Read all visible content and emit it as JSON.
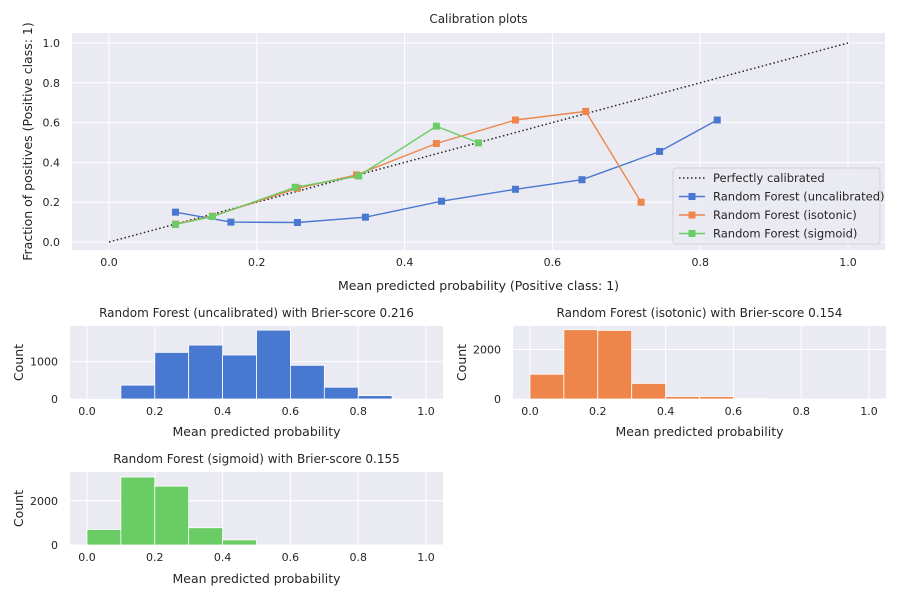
{
  "figure": {
    "background": "#ffffff",
    "axes_bg": "#eaeaf2",
    "grid_color": "#ffffff",
    "text_color": "#262626"
  },
  "chart_data": [
    {
      "type": "line",
      "title": "Calibration plots",
      "xlabel": "Mean predicted probability (Positive class: 1)",
      "ylabel": "Fraction of positives (Positive class: 1)",
      "xlim": [
        -0.05,
        1.05
      ],
      "ylim": [
        -0.04,
        1.05
      ],
      "xticks": [
        "0.0",
        "0.2",
        "0.4",
        "0.6",
        "0.8",
        "1.0"
      ],
      "yticks": [
        "0.0",
        "0.2",
        "0.4",
        "0.6",
        "0.8",
        "1.0"
      ],
      "grid": true,
      "legend_position": "lower-right",
      "series": [
        {
          "name": "Perfectly calibrated",
          "style": "dotted",
          "marker": "none",
          "color": "#262626",
          "x": [
            0,
            1
          ],
          "y": [
            0,
            1
          ]
        },
        {
          "name": "Random Forest (uncalibrated)",
          "style": "solid",
          "marker": "square",
          "color": "#4878d0",
          "x": [
            0.09,
            0.165,
            0.255,
            0.347,
            0.45,
            0.55,
            0.64,
            0.745,
            0.823
          ],
          "y": [
            0.15,
            0.1,
            0.098,
            0.125,
            0.205,
            0.265,
            0.313,
            0.455,
            0.613
          ]
        },
        {
          "name": "Random Forest (isotonic)",
          "style": "solid",
          "marker": "square",
          "color": "#ee854a",
          "x": [
            0.09,
            0.14,
            0.255,
            0.335,
            0.443,
            0.55,
            0.645,
            0.72
          ],
          "y": [
            0.09,
            0.13,
            0.27,
            0.337,
            0.495,
            0.613,
            0.656,
            0.2
          ]
        },
        {
          "name": "Random Forest (sigmoid)",
          "style": "solid",
          "marker": "square",
          "color": "#6acc64",
          "x": [
            0.09,
            0.14,
            0.252,
            0.338,
            0.443,
            0.5
          ],
          "y": [
            0.088,
            0.128,
            0.275,
            0.332,
            0.582,
            0.498
          ]
        }
      ]
    },
    {
      "type": "bar",
      "title": "Random Forest (uncalibrated) with Brier-score 0.216",
      "xlabel": "Mean predicted probability",
      "ylabel": "Count",
      "color": "#4878d0",
      "xlim": [
        -0.05,
        1.05
      ],
      "ylim": [
        0,
        1950
      ],
      "xticks": [
        "0.0",
        "0.2",
        "0.4",
        "0.6",
        "0.8",
        "1.0"
      ],
      "yticks": [
        "0",
        "1000"
      ],
      "ytick_values": [
        0,
        1000
      ],
      "bin_edges": [
        0.0,
        0.1,
        0.2,
        0.3,
        0.4,
        0.5,
        0.6,
        0.7,
        0.8,
        0.9,
        1.0
      ],
      "counts": [
        25,
        370,
        1245,
        1440,
        1175,
        1840,
        900,
        315,
        90,
        0
      ]
    },
    {
      "type": "bar",
      "title": "Random Forest (isotonic) with Brier-score 0.154",
      "xlabel": "Mean predicted probability",
      "ylabel": "Count",
      "color": "#ee854a",
      "xlim": [
        -0.05,
        1.05
      ],
      "ylim": [
        0,
        2950
      ],
      "xticks": [
        "0.0",
        "0.2",
        "0.4",
        "0.6",
        "0.8",
        "1.0"
      ],
      "yticks": [
        "0",
        "2000"
      ],
      "ytick_values": [
        0,
        2000
      ],
      "bin_edges": [
        0.0,
        0.1,
        0.2,
        0.3,
        0.4,
        0.5,
        0.6,
        0.7,
        0.8,
        0.9,
        1.0
      ],
      "counts": [
        1000,
        2800,
        2770,
        630,
        100,
        100,
        20,
        0,
        0,
        0
      ]
    },
    {
      "type": "bar",
      "title": "Random Forest (sigmoid) with Brier-score 0.155",
      "xlabel": "Mean predicted probability",
      "ylabel": "Count",
      "color": "#6acc64",
      "xlim": [
        -0.05,
        1.05
      ],
      "ylim": [
        0,
        3300
      ],
      "xticks": [
        "0.0",
        "0.2",
        "0.4",
        "0.6",
        "0.8",
        "1.0"
      ],
      "yticks": [
        "0",
        "2000"
      ],
      "ytick_values": [
        0,
        2000
      ],
      "bin_edges": [
        0.0,
        0.1,
        0.2,
        0.3,
        0.4,
        0.5,
        0.6,
        0.7,
        0.8,
        0.9,
        1.0
      ],
      "counts": [
        700,
        3070,
        2660,
        780,
        230,
        0,
        0,
        0,
        0,
        0
      ]
    }
  ]
}
